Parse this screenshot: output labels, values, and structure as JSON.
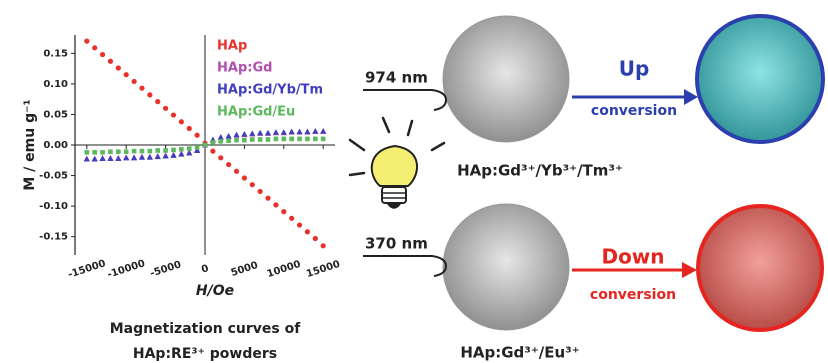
{
  "chart_data": {
    "type": "scatter",
    "xlabel": "H/Oe",
    "ylabel": "M / emu g⁻¹",
    "caption": [
      "Magnetization curves of",
      "HAp:RE³⁺ powders"
    ],
    "x": [
      -15000,
      -14000,
      -13000,
      -12000,
      -11000,
      -10000,
      -9000,
      -8000,
      -7000,
      -6000,
      -5000,
      -4000,
      -3000,
      -2000,
      -1000,
      0,
      1000,
      2000,
      3000,
      4000,
      5000,
      6000,
      7000,
      8000,
      9000,
      10000,
      11000,
      12000,
      13000,
      14000,
      15000
    ],
    "xlim": [
      -16500,
      16500
    ],
    "xticks": [
      -15000,
      -10000,
      -5000,
      0,
      5000,
      10000,
      15000
    ],
    "ylim": [
      -0.18,
      0.18
    ],
    "yticks": [
      {
        "value": -0.15,
        "label": "-0.15"
      },
      {
        "value": -0.1,
        "label": "-0.10"
      },
      -0.05,
      {
        "value": 0,
        "label": "0.00"
      },
      0.05,
      {
        "value": 0.1,
        "label": "0.10"
      },
      0.15
    ],
    "legend": "upper center",
    "series": [
      {
        "name": "HAp",
        "color": "#e8312c",
        "marker": "circle",
        "values": [
          0.17,
          0.159,
          0.148,
          0.137,
          0.126,
          0.115,
          0.104,
          0.093,
          0.082,
          0.071,
          0.06,
          0.049,
          0.038,
          0.027,
          0.016,
          0.003,
          -0.01,
          -0.021,
          -0.032,
          -0.043,
          -0.054,
          -0.065,
          -0.076,
          -0.087,
          -0.098,
          -0.109,
          -0.12,
          -0.131,
          -0.142,
          -0.153,
          -0.165
        ]
      },
      {
        "name": "HAp:Gd",
        "color": "#b04fb0",
        "marker": "triangle",
        "values": [
          -0.022,
          -0.022,
          -0.021,
          -0.021,
          -0.021,
          -0.02,
          -0.02,
          -0.019,
          -0.019,
          -0.018,
          -0.017,
          -0.016,
          -0.014,
          -0.012,
          -0.008,
          0.0,
          0.008,
          0.012,
          0.014,
          0.016,
          0.017,
          0.018,
          0.019,
          0.019,
          0.02,
          0.02,
          0.021,
          0.021,
          0.021,
          0.022,
          0.022
        ]
      },
      {
        "name": "HAp:Gd/Yb/Tm",
        "color": "#3f3fbf",
        "marker": "triangle",
        "values": [
          -0.023,
          -0.023,
          -0.022,
          -0.022,
          -0.022,
          -0.021,
          -0.021,
          -0.02,
          -0.02,
          -0.019,
          -0.018,
          -0.017,
          -0.015,
          -0.013,
          -0.009,
          0.0,
          0.009,
          0.013,
          0.015,
          0.017,
          0.018,
          0.019,
          0.02,
          0.02,
          0.021,
          0.021,
          0.022,
          0.022,
          0.022,
          0.023,
          0.023
        ]
      },
      {
        "name": "HAp:Gd/Eu",
        "color": "#5cb85c",
        "marker": "square",
        "values": [
          -0.012,
          -0.012,
          -0.012,
          -0.011,
          -0.011,
          -0.011,
          -0.01,
          -0.01,
          -0.01,
          -0.009,
          -0.009,
          -0.008,
          -0.007,
          -0.006,
          -0.004,
          0.0,
          0.004,
          0.006,
          0.007,
          0.008,
          0.008,
          0.009,
          0.009,
          0.009,
          0.01,
          0.01,
          0.01,
          0.01,
          0.01,
          0.01,
          0.01
        ]
      }
    ]
  },
  "diagram": {
    "up": {
      "wavelength": "974 nm",
      "word": "Up",
      "conversion": "conversion",
      "sample": "HAp:Gd³⁺/Yb³⁺/Tm³⁺"
    },
    "down": {
      "wavelength": "370 nm",
      "word": "Down",
      "conversion": "conversion",
      "sample": "HAp:Gd³⁺/Eu³⁺"
    }
  }
}
